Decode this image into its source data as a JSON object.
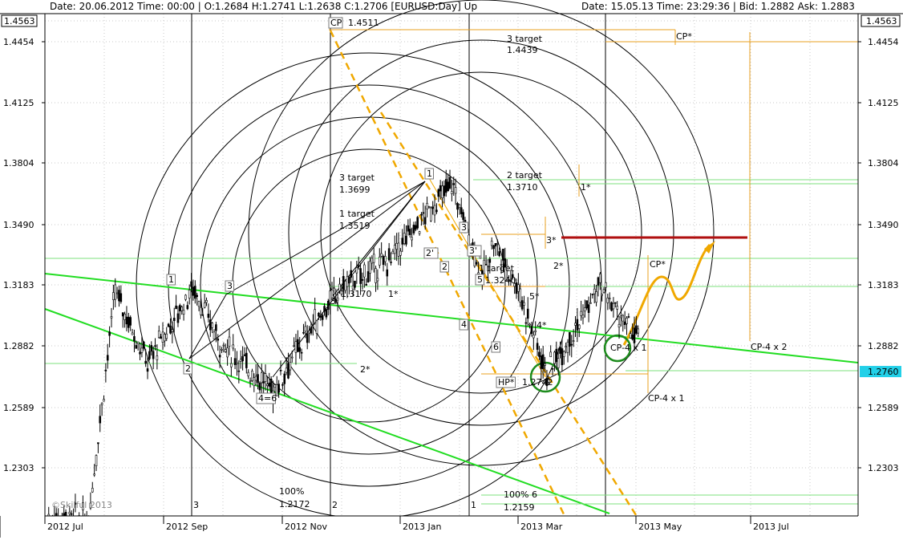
{
  "header": {
    "left": {
      "date_label": "Date:",
      "date": "20.06.2012",
      "time_label": "Time:",
      "time": "00:00",
      "ohlc": "O:1.2684 H:1.2741 L:1.2638 C:1.2706",
      "symbol": "[EURUSD:Day]",
      "direction": "Up"
    },
    "right": {
      "date_label": "Date:",
      "date": "15.05.13",
      "time_label": "Time:",
      "time": "23:29:36",
      "bid_label": "Bid:",
      "bid": "1.2882",
      "ask_label": "Ask:",
      "ask": "1.2883"
    }
  },
  "copyright": "©Skilful 2013",
  "current_price": "1.2760",
  "axis_top_label": "1.4563",
  "chart_data": {
    "type": "candlestick",
    "symbol": "EURUSD",
    "timeframe": "Day",
    "ylim": [
      1.204,
      1.4563
    ],
    "y_ticks": [
      1.4454,
      1.4125,
      1.3804,
      1.349,
      1.3183,
      1.2882,
      1.2589,
      1.2303
    ],
    "x_ticks": [
      "2012 Jul",
      "2012 Sep",
      "2012 Nov",
      "2013 Jan",
      "2013 Mar",
      "2013 May",
      "2013 Jul"
    ],
    "last_price": 1.276,
    "swing_points": [
      {
        "label": "1",
        "date": "2012-08-07",
        "price": 1.315
      },
      {
        "label": "2",
        "date": "2012-08-24",
        "price": 1.28
      },
      {
        "label": "3",
        "date": "2012-09-17",
        "price": 1.317
      },
      {
        "label": "4=6",
        "date": "2012-10-29",
        "price": 1.267
      },
      {
        "label": "1",
        "date": "2013-01-31",
        "price": 1.372
      },
      {
        "label": "2'",
        "date": "2013-02-07",
        "price": 1.33
      },
      {
        "label": "3",
        "date": "2013-02-22",
        "price": 1.349
      },
      {
        "label": "3'",
        "date": "2013-02-25",
        "price": 1.331
      },
      {
        "label": "2",
        "date": "2013-02-16",
        "price": 1.323
      },
      {
        "label": "4",
        "date": "2013-02-28",
        "price": 1.3
      },
      {
        "label": "5",
        "date": "2013-03-06",
        "price": 1.319
      },
      {
        "label": "6",
        "date": "2013-03-15",
        "price": 1.285
      },
      {
        "label": "HP*",
        "date": "2013-03-22",
        "price": 1.2742
      }
    ],
    "targets": [
      {
        "label": "3 target",
        "value": "1.3699"
      },
      {
        "label": "1 target",
        "value": "1.3519"
      },
      {
        "label": "2 target",
        "value": "1.3710"
      },
      {
        "label": "3 target",
        "value": "1.4439"
      },
      {
        "label": "1 target",
        "value": "1.3240"
      },
      {
        "label": "CP",
        "value": "1.4511"
      },
      {
        "label": "100%",
        "value": "1.2172"
      },
      {
        "label": "100% 6",
        "value": "1.2159"
      },
      {
        "label": "HP*",
        "value": "1.2742"
      },
      {
        "label": "",
        "value": "1.3170"
      }
    ],
    "annotations": [
      "1*",
      "1*",
      "2*",
      "2*",
      "3*",
      "5*",
      "4*",
      "3*",
      "CP*",
      "CP*",
      "CP-4 x 1",
      "CP-4 x 1",
      "CP-4 x 2"
    ],
    "vline_labels": [
      "3",
      "2",
      "1"
    ]
  },
  "colors": {
    "background": "#ffffff",
    "candle": "#000000",
    "trendline": "#22dd22",
    "target_line": "#e8a020",
    "fan_line": "#f0a800",
    "resistance": "#b01010",
    "circle": "#000000",
    "highlight_circle": "#1e8c1e",
    "price_box": "#22d0e8"
  }
}
